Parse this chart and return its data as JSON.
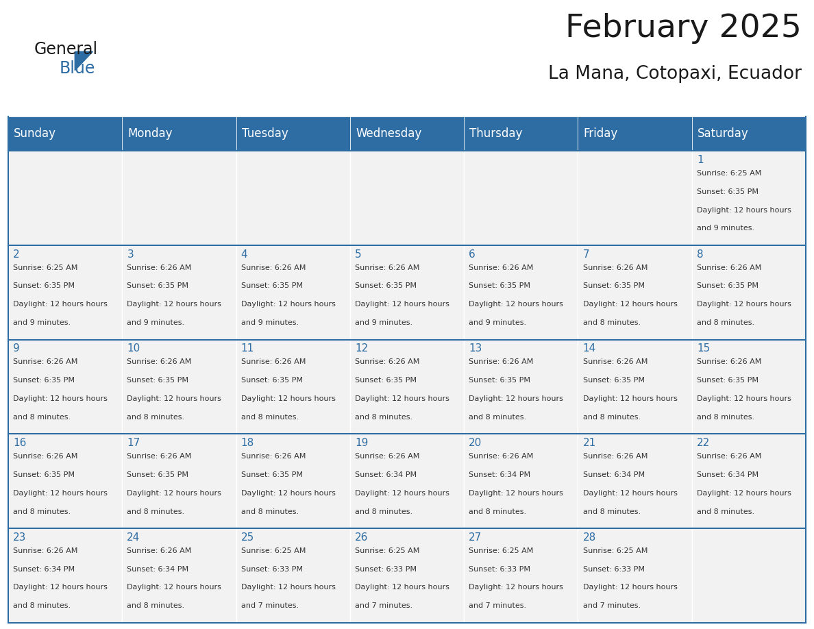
{
  "title": "February 2025",
  "subtitle": "La Mana, Cotopaxi, Ecuador",
  "header_color": "#2E6DA4",
  "header_text_color": "#FFFFFF",
  "cell_bg_color": "#F2F2F2",
  "grid_line_color": "#2E6DA4",
  "day_number_color": "#2E6DA4",
  "info_text_color": "#333333",
  "days_of_week": [
    "Sunday",
    "Monday",
    "Tuesday",
    "Wednesday",
    "Thursday",
    "Friday",
    "Saturday"
  ],
  "weeks": [
    [
      null,
      null,
      null,
      null,
      null,
      null,
      1
    ],
    [
      2,
      3,
      4,
      5,
      6,
      7,
      8
    ],
    [
      9,
      10,
      11,
      12,
      13,
      14,
      15
    ],
    [
      16,
      17,
      18,
      19,
      20,
      21,
      22
    ],
    [
      23,
      24,
      25,
      26,
      27,
      28,
      null
    ]
  ],
  "day_data": {
    "1": {
      "sunrise": "6:25 AM",
      "sunset": "6:35 PM",
      "daylight": "12 hours and 9 minutes"
    },
    "2": {
      "sunrise": "6:25 AM",
      "sunset": "6:35 PM",
      "daylight": "12 hours and 9 minutes"
    },
    "3": {
      "sunrise": "6:26 AM",
      "sunset": "6:35 PM",
      "daylight": "12 hours and 9 minutes"
    },
    "4": {
      "sunrise": "6:26 AM",
      "sunset": "6:35 PM",
      "daylight": "12 hours and 9 minutes"
    },
    "5": {
      "sunrise": "6:26 AM",
      "sunset": "6:35 PM",
      "daylight": "12 hours and 9 minutes"
    },
    "6": {
      "sunrise": "6:26 AM",
      "sunset": "6:35 PM",
      "daylight": "12 hours and 9 minutes"
    },
    "7": {
      "sunrise": "6:26 AM",
      "sunset": "6:35 PM",
      "daylight": "12 hours and 8 minutes"
    },
    "8": {
      "sunrise": "6:26 AM",
      "sunset": "6:35 PM",
      "daylight": "12 hours and 8 minutes"
    },
    "9": {
      "sunrise": "6:26 AM",
      "sunset": "6:35 PM",
      "daylight": "12 hours and 8 minutes"
    },
    "10": {
      "sunrise": "6:26 AM",
      "sunset": "6:35 PM",
      "daylight": "12 hours and 8 minutes"
    },
    "11": {
      "sunrise": "6:26 AM",
      "sunset": "6:35 PM",
      "daylight": "12 hours and 8 minutes"
    },
    "12": {
      "sunrise": "6:26 AM",
      "sunset": "6:35 PM",
      "daylight": "12 hours and 8 minutes"
    },
    "13": {
      "sunrise": "6:26 AM",
      "sunset": "6:35 PM",
      "daylight": "12 hours and 8 minutes"
    },
    "14": {
      "sunrise": "6:26 AM",
      "sunset": "6:35 PM",
      "daylight": "12 hours and 8 minutes"
    },
    "15": {
      "sunrise": "6:26 AM",
      "sunset": "6:35 PM",
      "daylight": "12 hours and 8 minutes"
    },
    "16": {
      "sunrise": "6:26 AM",
      "sunset": "6:35 PM",
      "daylight": "12 hours and 8 minutes"
    },
    "17": {
      "sunrise": "6:26 AM",
      "sunset": "6:35 PM",
      "daylight": "12 hours and 8 minutes"
    },
    "18": {
      "sunrise": "6:26 AM",
      "sunset": "6:35 PM",
      "daylight": "12 hours and 8 minutes"
    },
    "19": {
      "sunrise": "6:26 AM",
      "sunset": "6:34 PM",
      "daylight": "12 hours and 8 minutes"
    },
    "20": {
      "sunrise": "6:26 AM",
      "sunset": "6:34 PM",
      "daylight": "12 hours and 8 minutes"
    },
    "21": {
      "sunrise": "6:26 AM",
      "sunset": "6:34 PM",
      "daylight": "12 hours and 8 minutes"
    },
    "22": {
      "sunrise": "6:26 AM",
      "sunset": "6:34 PM",
      "daylight": "12 hours and 8 minutes"
    },
    "23": {
      "sunrise": "6:26 AM",
      "sunset": "6:34 PM",
      "daylight": "12 hours and 8 minutes"
    },
    "24": {
      "sunrise": "6:26 AM",
      "sunset": "6:34 PM",
      "daylight": "12 hours and 8 minutes"
    },
    "25": {
      "sunrise": "6:25 AM",
      "sunset": "6:33 PM",
      "daylight": "12 hours and 7 minutes"
    },
    "26": {
      "sunrise": "6:25 AM",
      "sunset": "6:33 PM",
      "daylight": "12 hours and 7 minutes"
    },
    "27": {
      "sunrise": "6:25 AM",
      "sunset": "6:33 PM",
      "daylight": "12 hours and 7 minutes"
    },
    "28": {
      "sunrise": "6:25 AM",
      "sunset": "6:33 PM",
      "daylight": "12 hours and 7 minutes"
    }
  },
  "logo_text_general": "General",
  "logo_text_blue": "Blue",
  "logo_color_general": "#1a1a1a",
  "logo_color_blue": "#2E6DA4",
  "logo_triangle_color": "#2E6DA4"
}
